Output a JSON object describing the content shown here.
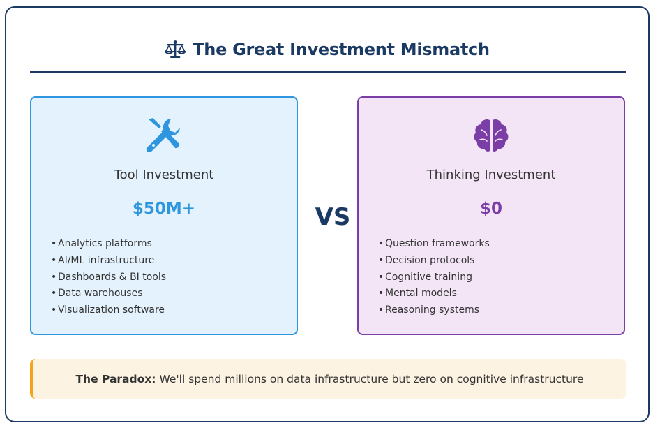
{
  "title": {
    "icon": "balance-scale-icon",
    "text": "The Great Investment Mismatch"
  },
  "colors": {
    "navy": "#1b3a63",
    "tool_accent": "#2e96de",
    "tool_bg": "#e4f2fd",
    "thinking_accent": "#7b3ea7",
    "thinking_bg": "#f3e5f6",
    "paradox_accent": "#f5a31a",
    "paradox_bg": "#fdf3e3"
  },
  "tool_card": {
    "icon": "tools-icon",
    "title": "Tool Investment",
    "amount": "$50M+",
    "items": [
      "Analytics platforms",
      "AI/ML infrastructure",
      "Dashboards & BI tools",
      "Data warehouses",
      "Visualization software"
    ]
  },
  "vs_label": "VS",
  "thinking_card": {
    "icon": "brain-icon",
    "title": "Thinking Investment",
    "amount": "$0",
    "items": [
      "Question frameworks",
      "Decision protocols",
      "Cognitive training",
      "Mental models",
      "Reasoning systems"
    ]
  },
  "paradox": {
    "label": "The Paradox:",
    "text": "We'll spend millions on data infrastructure but zero on cognitive infrastructure"
  }
}
